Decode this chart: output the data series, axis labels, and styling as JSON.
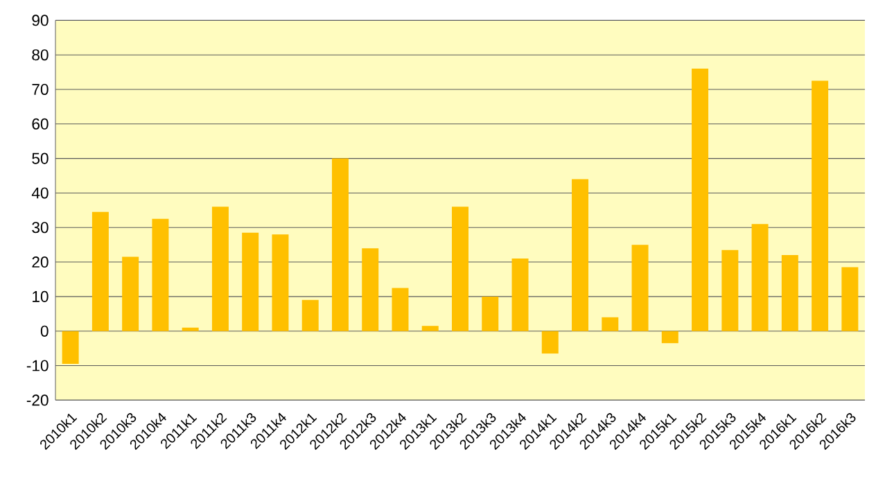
{
  "chart_data": {
    "type": "bar",
    "categories": [
      "2010k1",
      "2010k2",
      "2010k3",
      "2010k4",
      "2011k1",
      "2011k2",
      "2011k3",
      "2011k4",
      "2012k1",
      "2012k2",
      "2012k3",
      "2012k4",
      "2013k1",
      "2013k2",
      "2013k3",
      "2013k4",
      "2014k1",
      "2014k2",
      "2014k3",
      "2014k4",
      "2015k1",
      "2015k2",
      "2015k3",
      "2015k4",
      "2016k1",
      "2016k2",
      "2016k3"
    ],
    "values": [
      -9.5,
      34.5,
      21.5,
      32.5,
      1,
      36,
      28.5,
      28,
      9,
      50,
      24,
      12.5,
      1.5,
      36,
      10,
      21,
      -6.5,
      44,
      4,
      25,
      -3.5,
      76,
      23.5,
      31,
      22,
      72.5,
      18.5
    ],
    "color": "#ffc000",
    "ylim": [
      -20,
      90
    ],
    "yticks": [
      -20,
      -10,
      0,
      10,
      20,
      30,
      40,
      50,
      60,
      70,
      80,
      90
    ],
    "grid": "y"
  }
}
